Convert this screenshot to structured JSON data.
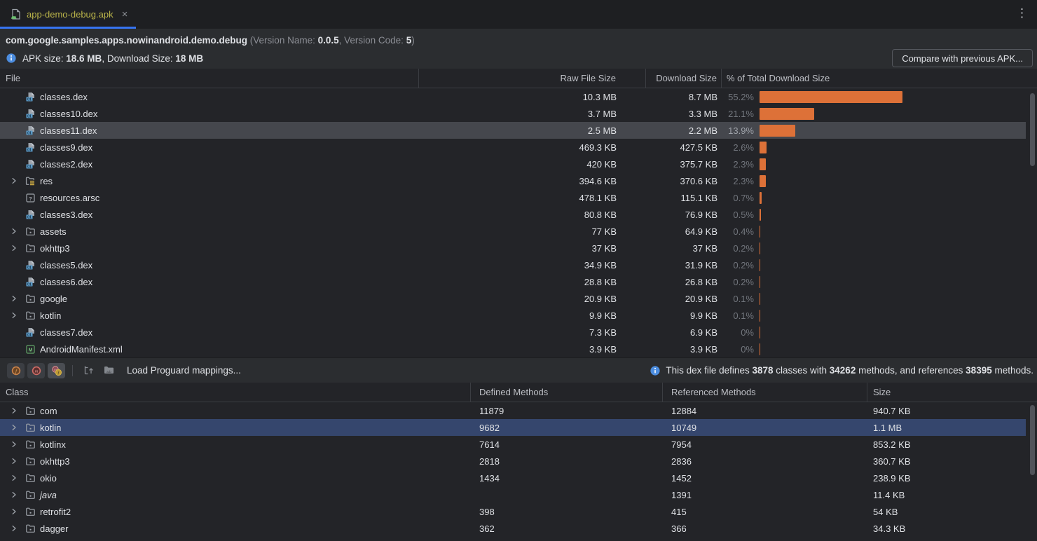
{
  "tab": {
    "title": "app-demo-debug.apk",
    "close_glyph": "×"
  },
  "header": {
    "package_name": "com.google.samples.apps.nowinandroid.demo.debug",
    "version_prefix": " (Version Name: ",
    "version_name": "0.0.5",
    "version_separator": ", Version Code: ",
    "version_code": "5",
    "version_suffix": ")",
    "apk_size_label": "APK size: ",
    "apk_size_value": "18.6 MB",
    "download_size_label": ", Download Size: ",
    "download_size_value": "18 MB",
    "compare_button_label": "Compare with previous APK..."
  },
  "file_table": {
    "columns": {
      "file": "File",
      "raw": "Raw File Size",
      "download": "Download Size",
      "pct": "% of Total Download Size"
    },
    "rows": [
      {
        "name": "classes.dex",
        "icon": "dex",
        "expandable": false,
        "selected": false,
        "raw": "10.3 MB",
        "download": "8.7 MB",
        "pct": "55.2%",
        "pct_value": 55.2
      },
      {
        "name": "classes10.dex",
        "icon": "dex",
        "expandable": false,
        "selected": false,
        "raw": "3.7 MB",
        "download": "3.3 MB",
        "pct": "21.1%",
        "pct_value": 21.1
      },
      {
        "name": "classes11.dex",
        "icon": "dex",
        "expandable": false,
        "selected": true,
        "raw": "2.5 MB",
        "download": "2.2 MB",
        "pct": "13.9%",
        "pct_value": 13.9
      },
      {
        "name": "classes9.dex",
        "icon": "dex",
        "expandable": false,
        "selected": false,
        "raw": "469.3 KB",
        "download": "427.5 KB",
        "pct": "2.6%",
        "pct_value": 2.6
      },
      {
        "name": "classes2.dex",
        "icon": "dex",
        "expandable": false,
        "selected": false,
        "raw": "420 KB",
        "download": "375.7 KB",
        "pct": "2.3%",
        "pct_value": 2.3
      },
      {
        "name": "res",
        "icon": "folder-res",
        "expandable": true,
        "selected": false,
        "raw": "394.6 KB",
        "download": "370.6 KB",
        "pct": "2.3%",
        "pct_value": 2.3
      },
      {
        "name": "resources.arsc",
        "icon": "arsc",
        "expandable": false,
        "selected": false,
        "raw": "478.1 KB",
        "download": "115.1 KB",
        "pct": "0.7%",
        "pct_value": 0.7
      },
      {
        "name": "classes3.dex",
        "icon": "dex",
        "expandable": false,
        "selected": false,
        "raw": "80.8 KB",
        "download": "76.9 KB",
        "pct": "0.5%",
        "pct_value": 0.5
      },
      {
        "name": "assets",
        "icon": "folder",
        "expandable": true,
        "selected": false,
        "raw": "77 KB",
        "download": "64.9 KB",
        "pct": "0.4%",
        "pct_value": 0.4
      },
      {
        "name": "okhttp3",
        "icon": "folder",
        "expandable": true,
        "selected": false,
        "raw": "37 KB",
        "download": "37 KB",
        "pct": "0.2%",
        "pct_value": 0.2
      },
      {
        "name": "classes5.dex",
        "icon": "dex",
        "expandable": false,
        "selected": false,
        "raw": "34.9 KB",
        "download": "31.9 KB",
        "pct": "0.2%",
        "pct_value": 0.2
      },
      {
        "name": "classes6.dex",
        "icon": "dex",
        "expandable": false,
        "selected": false,
        "raw": "28.8 KB",
        "download": "26.8 KB",
        "pct": "0.2%",
        "pct_value": 0.2
      },
      {
        "name": "google",
        "icon": "folder",
        "expandable": true,
        "selected": false,
        "raw": "20.9 KB",
        "download": "20.9 KB",
        "pct": "0.1%",
        "pct_value": 0.1
      },
      {
        "name": "kotlin",
        "icon": "folder",
        "expandable": true,
        "selected": false,
        "raw": "9.9 KB",
        "download": "9.9 KB",
        "pct": "0.1%",
        "pct_value": 0.1
      },
      {
        "name": "classes7.dex",
        "icon": "dex",
        "expandable": false,
        "selected": false,
        "raw": "7.3 KB",
        "download": "6.9 KB",
        "pct": "0%",
        "pct_value": 0
      },
      {
        "name": "AndroidManifest.xml",
        "icon": "manifest",
        "expandable": false,
        "selected": false,
        "raw": "3.9 KB",
        "download": "3.9 KB",
        "pct": "0%",
        "pct_value": 0
      }
    ]
  },
  "dex_toolbar": {
    "load_mappings_label": "Load Proguard mappings...",
    "info": {
      "prefix": "This dex file defines ",
      "classes_count": "3878",
      "mid1": " classes with ",
      "methods_count": "34262",
      "mid2": " methods, and references ",
      "referenced_count": "38395",
      "suffix": " methods."
    }
  },
  "class_table": {
    "columns": {
      "class": "Class",
      "defined": "Defined Methods",
      "referenced": "Referenced Methods",
      "size": "Size"
    },
    "rows": [
      {
        "name": "com",
        "italic": false,
        "selected": false,
        "defined": "11879",
        "referenced": "12884",
        "size": "940.7 KB"
      },
      {
        "name": "kotlin",
        "italic": false,
        "selected": true,
        "defined": "9682",
        "referenced": "10749",
        "size": "1.1 MB"
      },
      {
        "name": "kotlinx",
        "italic": false,
        "selected": false,
        "defined": "7614",
        "referenced": "7954",
        "size": "853.2 KB"
      },
      {
        "name": "okhttp3",
        "italic": false,
        "selected": false,
        "defined": "2818",
        "referenced": "2836",
        "size": "360.7 KB"
      },
      {
        "name": "okio",
        "italic": false,
        "selected": false,
        "defined": "1434",
        "referenced": "1452",
        "size": "238.9 KB"
      },
      {
        "name": "java",
        "italic": true,
        "selected": false,
        "defined": "",
        "referenced": "1391",
        "size": "11.4 KB"
      },
      {
        "name": "retrofit2",
        "italic": false,
        "selected": false,
        "defined": "398",
        "referenced": "415",
        "size": "54 KB"
      },
      {
        "name": "dagger",
        "italic": false,
        "selected": false,
        "defined": "362",
        "referenced": "366",
        "size": "34.3 KB"
      }
    ]
  },
  "colors": {
    "bar_orange": "#dd7138",
    "selection_blue": "#35466d",
    "selection_gray": "#45474d",
    "tab_underline_blue": "#3674f0",
    "tab_title_yellow": "#bbb54a",
    "info_icon_blue": "#4c8ddf",
    "manifest_green": "#62a567"
  }
}
